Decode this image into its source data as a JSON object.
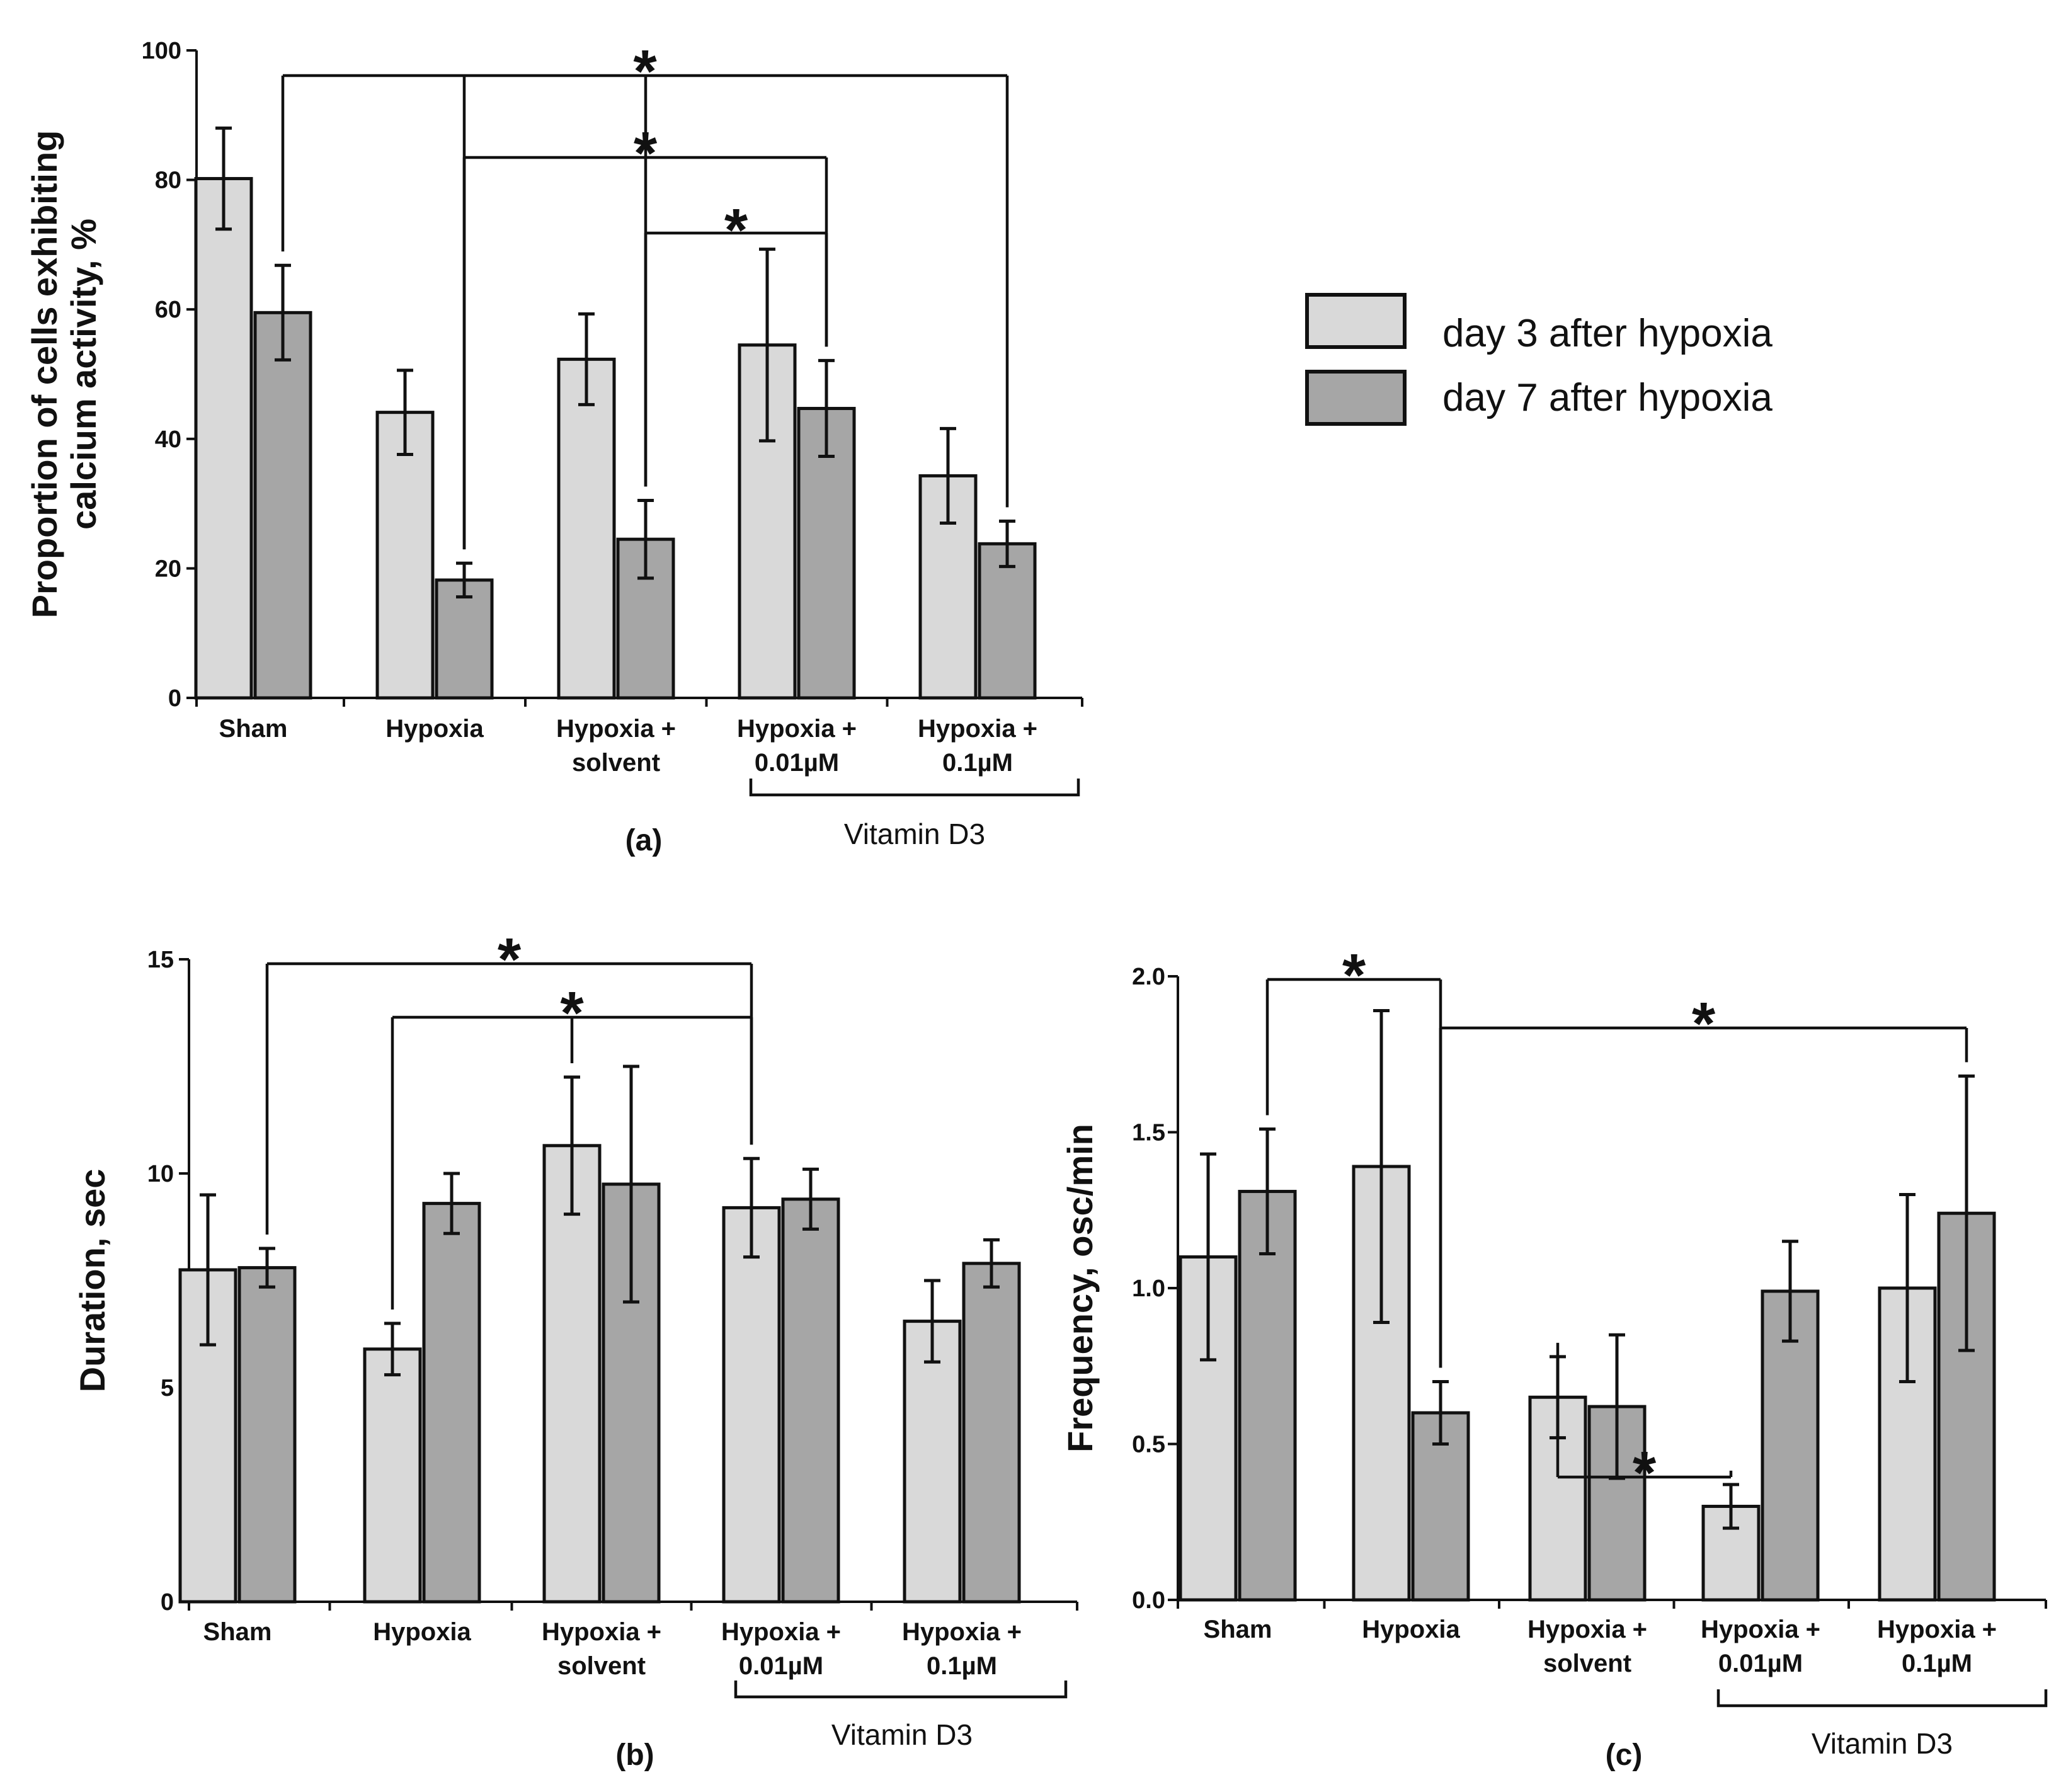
{
  "figure": {
    "legend": {
      "entries": [
        {
          "label": "day 3 after hypoxia",
          "color": "#d9d9d9"
        },
        {
          "label": "day 7 after hypoxia",
          "color": "#a6a6a6"
        }
      ]
    },
    "vitamin_label": "Vitamin D3"
  },
  "chart_data": [
    {
      "id": "a",
      "type": "bar",
      "panel_label": "(a)",
      "ylabel_lines": [
        "Proportion of cells exhibiting",
        "calcium activity, %"
      ],
      "ylim": [
        0,
        100
      ],
      "yticks": [
        "0",
        "20",
        "40",
        "60",
        "80",
        "100"
      ],
      "categories": [
        [
          "Sham"
        ],
        [
          "Hypoxia"
        ],
        [
          "Hypoxia +",
          "solvent"
        ],
        [
          "Hypoxia +",
          "0.01µM"
        ],
        [
          "Hypoxia +",
          "0.1µM"
        ]
      ],
      "series": [
        {
          "name": "day 3 after hypoxia",
          "values": [
            80.2,
            44.1,
            52.3,
            54.5,
            34.3
          ],
          "errors": [
            7.8,
            6.5,
            7.0,
            14.8,
            7.3
          ]
        },
        {
          "name": "day 7 after hypoxia",
          "values": [
            59.5,
            18.2,
            24.5,
            44.7,
            23.8
          ],
          "errors": [
            7.3,
            2.6,
            6.0,
            7.4,
            3.5
          ]
        }
      ],
      "significance": [
        {
          "label": "*",
          "from": [
            0,
            1
          ],
          "to": [
            [
              1,
              1
            ],
            [
              2,
              1
            ],
            [
              4,
              1
            ]
          ]
        },
        {
          "label": "*",
          "from": [
            1,
            1
          ],
          "to": [
            [
              3,
              1
            ]
          ]
        },
        {
          "label": "*",
          "from": [
            2,
            1
          ],
          "to": [
            [
              3,
              1
            ]
          ]
        }
      ]
    },
    {
      "id": "b",
      "type": "bar",
      "panel_label": "(b)",
      "ylabel_lines": [
        "Duration, sec"
      ],
      "ylim": [
        0,
        15
      ],
      "yticks": [
        "0",
        "5",
        "10",
        "15"
      ],
      "categories": [
        [
          "Sham"
        ],
        [
          "Hypoxia"
        ],
        [
          "Hypoxia +",
          "solvent"
        ],
        [
          "Hypoxia +",
          "0.01µM"
        ],
        [
          "Hypoxia +",
          "0.1µM"
        ]
      ],
      "series": [
        {
          "name": "day 3 after hypoxia",
          "values": [
            7.75,
            5.9,
            10.65,
            9.2,
            6.55
          ],
          "errors": [
            1.75,
            0.6,
            1.6,
            1.15,
            0.95
          ]
        },
        {
          "name": "day 7 after hypoxia",
          "values": [
            7.8,
            9.3,
            9.75,
            9.4,
            7.9
          ],
          "errors": [
            0.45,
            0.7,
            2.75,
            0.7,
            0.55
          ]
        }
      ],
      "significance": [
        {
          "label": "*",
          "from": [
            0,
            1
          ],
          "to": [
            [
              3,
              0
            ]
          ]
        },
        {
          "label": "*",
          "from": [
            1,
            0
          ],
          "to": [
            [
              2,
              0
            ],
            [
              3,
              0
            ]
          ]
        }
      ]
    },
    {
      "id": "c",
      "type": "bar",
      "panel_label": "(c)",
      "ylabel_lines": [
        "Frequency, osc/min"
      ],
      "ylim": [
        0,
        2.0
      ],
      "yticks": [
        "0.0",
        "0.5",
        "1.0",
        "1.5",
        "2.0"
      ],
      "categories": [
        [
          "Sham"
        ],
        [
          "Hypoxia"
        ],
        [
          "Hypoxia +",
          "solvent"
        ],
        [
          "Hypoxia +",
          "0.01µM"
        ],
        [
          "Hypoxia +",
          "0.1µM"
        ]
      ],
      "series": [
        {
          "name": "day 3 after hypoxia",
          "values": [
            1.1,
            1.39,
            0.65,
            0.3,
            1.0
          ],
          "errors": [
            0.33,
            0.5,
            0.13,
            0.07,
            0.3
          ]
        },
        {
          "name": "day 7 after hypoxia",
          "values": [
            1.31,
            0.6,
            0.62,
            0.99,
            1.24
          ],
          "errors": [
            0.2,
            0.1,
            0.23,
            0.16,
            0.44
          ]
        }
      ],
      "significance": [
        {
          "label": "*",
          "from": [
            0,
            1
          ],
          "to": [
            [
              1,
              1
            ]
          ]
        },
        {
          "label": "*",
          "from": [
            1,
            1
          ],
          "to": [
            [
              4,
              1
            ]
          ]
        },
        {
          "label": "*",
          "from": [
            2,
            0
          ],
          "to": [
            [
              3,
              0
            ]
          ]
        }
      ]
    }
  ]
}
